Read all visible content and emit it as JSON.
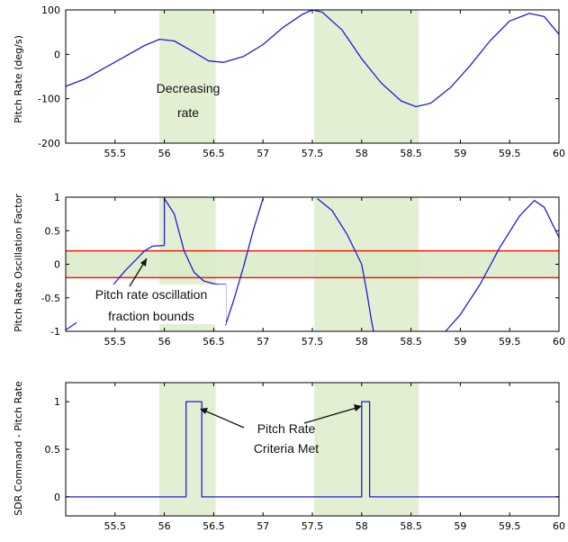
{
  "chart_data": [
    {
      "type": "line",
      "ylabel": "Pitch Rate (deg/s)",
      "xlim": [
        55,
        60
      ],
      "ylim": [
        -200,
        100
      ],
      "x_ticks": [
        "55.5",
        "56",
        "56.5",
        "57",
        "57.5",
        "58",
        "58.5",
        "59",
        "59.5",
        "60"
      ],
      "y_ticks": [
        "100",
        "0",
        "-100",
        "-200"
      ],
      "shaded_x_ranges": [
        [
          55.95,
          56.52
        ],
        [
          57.52,
          58.58
        ]
      ],
      "series": [
        {
          "color": "#1f1fd6",
          "x": [
            55.0,
            55.2,
            55.4,
            55.6,
            55.8,
            55.95,
            56.1,
            56.3,
            56.45,
            56.6,
            56.8,
            57.0,
            57.2,
            57.4,
            57.5,
            57.6,
            57.8,
            58.0,
            58.2,
            58.4,
            58.55,
            58.7,
            58.9,
            59.1,
            59.3,
            59.5,
            59.7,
            59.85,
            60.0
          ],
          "y": [
            -72,
            -55,
            -30,
            -5,
            20,
            34,
            30,
            5,
            -15,
            -18,
            -5,
            22,
            60,
            90,
            100,
            95,
            55,
            -10,
            -65,
            -105,
            -118,
            -110,
            -75,
            -25,
            30,
            75,
            92,
            85,
            45
          ]
        }
      ],
      "annotations": [
        {
          "text_lines": [
            "Decreasing",
            "rate"
          ]
        }
      ]
    },
    {
      "type": "line",
      "ylabel": "Pitch Rate Oscillation Factor",
      "xlim": [
        55,
        60
      ],
      "ylim": [
        -1,
        1
      ],
      "x_ticks": [
        "55.5",
        "56",
        "56.5",
        "57",
        "57.5",
        "58",
        "58.5",
        "59",
        "59.5",
        "60"
      ],
      "y_ticks": [
        "1",
        "0.5",
        "0",
        "-0.5",
        "-1"
      ],
      "shaded_x_ranges": [
        [
          55.95,
          56.52
        ],
        [
          57.52,
          58.58
        ]
      ],
      "band": [
        -0.2,
        0.2
      ],
      "band_line_color": "#e8200c",
      "series": [
        {
          "color": "#1f1fd6",
          "segments": [
            {
              "x": [
                55.0,
                55.2,
                55.4,
                55.6,
                55.8,
                55.88,
                55.88,
                56.0
              ],
              "y": [
                -0.98,
                -0.78,
                -0.45,
                -0.1,
                0.2,
                0.27,
                0.27,
                0.28
              ]
            },
            {
              "x": [
                56.0,
                56.0,
                56.1,
                56.2,
                56.3,
                56.4,
                56.5,
                56.55
              ],
              "y": [
                0.28,
                0.98,
                0.75,
                0.2,
                -0.12,
                -0.25,
                -0.29,
                -0.3
              ]
            },
            {
              "x": [
                56.55,
                56.62,
                56.62,
                56.7,
                56.8,
                56.9,
                57.0
              ],
              "y": [
                -0.3,
                -0.3,
                -0.9,
                -0.55,
                -0.05,
                0.5,
                0.98
              ]
            },
            {
              "x": [
                57.55,
                57.7,
                57.85,
                58.0,
                58.05,
                58.1,
                58.12
              ],
              "y": [
                0.98,
                0.8,
                0.45,
                0.0,
                -0.4,
                -0.85,
                -1.0
              ]
            },
            {
              "x": [
                58.85,
                59.0,
                59.2,
                59.4,
                59.6,
                59.75,
                59.85,
                60.0
              ],
              "y": [
                -1.0,
                -0.75,
                -0.3,
                0.25,
                0.72,
                0.95,
                0.85,
                0.4
              ]
            }
          ]
        }
      ],
      "annotations": [
        {
          "text_lines": [
            "Pitch rate oscillation",
            "fraction bounds"
          ]
        }
      ]
    },
    {
      "type": "line",
      "ylabel": "SDR Command - Pitch Rate",
      "xlim": [
        55,
        60
      ],
      "ylim": [
        -0.2,
        1.2
      ],
      "x_ticks": [
        "55.5",
        "56",
        "56.5",
        "57",
        "57.5",
        "58",
        "58.5",
        "59",
        "59.5",
        "60"
      ],
      "y_ticks": [
        "1",
        "0.5",
        "0"
      ],
      "shaded_x_ranges": [
        [
          55.95,
          56.52
        ],
        [
          57.52,
          58.58
        ]
      ],
      "series": [
        {
          "color": "#1f1fd6",
          "x": [
            55.0,
            56.22,
            56.22,
            56.38,
            56.38,
            58.0,
            58.0,
            58.08,
            58.08,
            60.0
          ],
          "y": [
            0,
            0,
            1,
            1,
            0,
            0,
            1,
            1,
            0,
            0
          ]
        }
      ],
      "annotations": [
        {
          "text_lines": [
            "Pitch Rate",
            "Criteria Met"
          ]
        }
      ]
    }
  ]
}
